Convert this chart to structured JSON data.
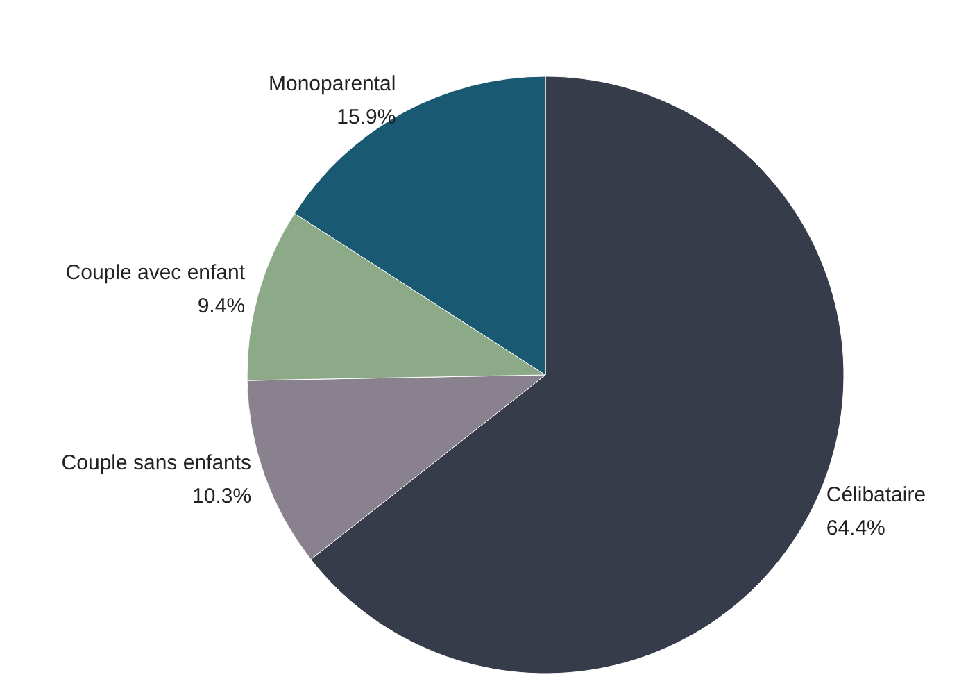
{
  "chart_data": {
    "type": "pie",
    "categories": [
      "Célibataire",
      "Couple sans enfants",
      "Couple avec enfant",
      "Monoparental"
    ],
    "values": [
      64.4,
      10.3,
      9.4,
      15.9
    ],
    "value_labels": [
      "64.4%",
      "10.3%",
      "9.4%",
      "15.9%"
    ],
    "colors": [
      "#373c4a",
      "#8a818e",
      "#8caa87",
      "#1a5972"
    ]
  }
}
